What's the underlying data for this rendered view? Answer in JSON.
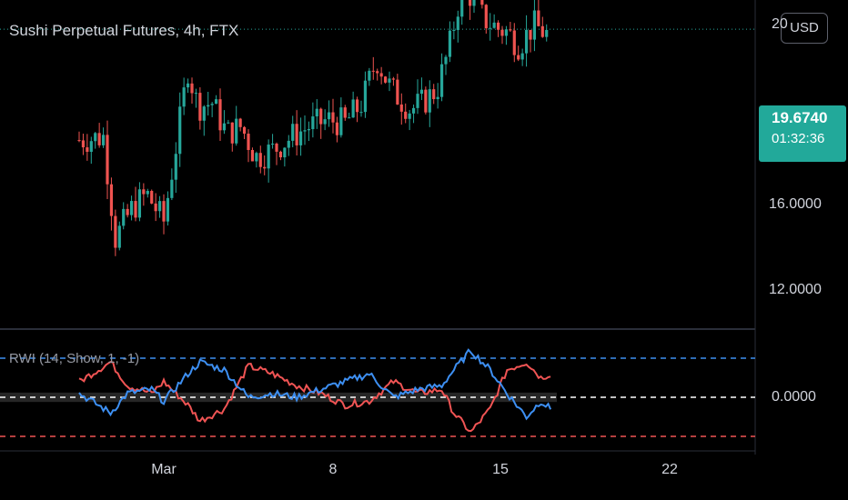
{
  "header": {
    "title": "Sushi Perpetual Futures, 4h, FTX"
  },
  "currency_button": {
    "label": "USD"
  },
  "price_axis": {
    "ticks": [
      {
        "value": 20,
        "label": "20"
      },
      {
        "value": 16,
        "label": "16.0000"
      },
      {
        "value": 12,
        "label": "12.0000"
      }
    ],
    "last_price": "19.6740",
    "countdown": "01:32:36"
  },
  "indicator": {
    "label": "RWI (14, Show, 1, -1)",
    "zero_label": "0.0000"
  },
  "time_axis": {
    "ticks": [
      {
        "day": 1,
        "label": "Mar"
      },
      {
        "day": 8,
        "label": "8"
      },
      {
        "day": 15,
        "label": "15"
      },
      {
        "day": 22,
        "label": "22"
      }
    ]
  },
  "colors": {
    "up": "#26a69a",
    "down": "#ef5350",
    "rwi_high": "#3d8ff2",
    "rwi_low": "#f05454",
    "bg": "#000000"
  },
  "chart_data": [
    {
      "type": "candlestick",
      "x_axis": "date (Feb - Mar)",
      "ylim": [
        10.2,
        21.6
      ],
      "x_range_days": [
        -2.5,
        29
      ],
      "close_path": [
        {
          "day": -2.5,
          "close": 16.4
        },
        {
          "day": -1.5,
          "close": 16.5
        },
        {
          "day": -1.0,
          "close": 13.5
        },
        {
          "day": -0.3,
          "close": 14.4
        },
        {
          "day": 0.3,
          "close": 14.8
        },
        {
          "day": 1.0,
          "close": 14.0
        },
        {
          "day": 1.5,
          "close": 16.2
        },
        {
          "day": 2.0,
          "close": 18.5
        },
        {
          "day": 2.4,
          "close": 17.4
        },
        {
          "day": 3.0,
          "close": 17.5
        },
        {
          "day": 3.6,
          "close": 16.6
        },
        {
          "day": 4.2,
          "close": 16.8
        },
        {
          "day": 4.8,
          "close": 15.9
        },
        {
          "day": 5.5,
          "close": 16.1
        },
        {
          "day": 6.3,
          "close": 16.5
        },
        {
          "day": 7.0,
          "close": 16.8
        },
        {
          "day": 7.8,
          "close": 17.0
        },
        {
          "day": 8.5,
          "close": 16.9
        },
        {
          "day": 9.2,
          "close": 17.5
        },
        {
          "day": 9.8,
          "close": 18.8
        },
        {
          "day": 10.4,
          "close": 17.9
        },
        {
          "day": 11.2,
          "close": 17.3
        },
        {
          "day": 11.7,
          "close": 17.5
        },
        {
          "day": 12.3,
          "close": 17.9
        },
        {
          "day": 12.8,
          "close": 19.1
        },
        {
          "day": 13.2,
          "close": 20.5
        },
        {
          "day": 13.7,
          "close": 20.7
        },
        {
          "day": 14.2,
          "close": 20.0
        },
        {
          "day": 14.8,
          "close": 19.7
        },
        {
          "day": 15.2,
          "close": 19.6
        },
        {
          "day": 15.7,
          "close": 19.2
        },
        {
          "day": 16.3,
          "close": 19.8
        },
        {
          "day": 16.9,
          "close": 19.5
        }
      ],
      "last_price": 19.674
    },
    {
      "type": "line",
      "series": [
        {
          "name": "RWI High",
          "points": [
            {
              "day": -2.5,
              "value": 0.1
            },
            {
              "day": -1.2,
              "value": -0.4
            },
            {
              "day": -0.5,
              "value": 0.1
            },
            {
              "day": 0.5,
              "value": 0.2
            },
            {
              "day": 1.0,
              "value": -0.1
            },
            {
              "day": 2.0,
              "value": 0.6
            },
            {
              "day": 2.5,
              "value": 0.9
            },
            {
              "day": 3.5,
              "value": 0.7
            },
            {
              "day": 4.5,
              "value": 0.0
            },
            {
              "day": 5.5,
              "value": 0.1
            },
            {
              "day": 6.5,
              "value": 0.0
            },
            {
              "day": 7.5,
              "value": 0.2
            },
            {
              "day": 8.5,
              "value": 0.4
            },
            {
              "day": 9.5,
              "value": 0.6
            },
            {
              "day": 10.5,
              "value": 0.0
            },
            {
              "day": 11.5,
              "value": 0.2
            },
            {
              "day": 12.5,
              "value": 0.3
            },
            {
              "day": 13.0,
              "value": 0.7
            },
            {
              "day": 13.7,
              "value": 1.2
            },
            {
              "day": 14.5,
              "value": 0.7
            },
            {
              "day": 15.2,
              "value": 0.1
            },
            {
              "day": 16.0,
              "value": -0.5
            },
            {
              "day": 16.6,
              "value": -0.1
            },
            {
              "day": 17.0,
              "value": -0.3
            }
          ]
        },
        {
          "name": "RWI Low",
          "points": [
            {
              "day": -2.5,
              "value": 0.4
            },
            {
              "day": -1.2,
              "value": 0.9
            },
            {
              "day": -0.5,
              "value": 0.3
            },
            {
              "day": 0.5,
              "value": 0.1
            },
            {
              "day": 1.0,
              "value": 0.4
            },
            {
              "day": 2.0,
              "value": -0.2
            },
            {
              "day": 2.5,
              "value": -0.6
            },
            {
              "day": 3.5,
              "value": -0.3
            },
            {
              "day": 4.5,
              "value": 0.8
            },
            {
              "day": 5.5,
              "value": 0.6
            },
            {
              "day": 6.5,
              "value": 0.3
            },
            {
              "day": 7.5,
              "value": 0.1
            },
            {
              "day": 8.5,
              "value": -0.2
            },
            {
              "day": 9.5,
              "value": -0.1
            },
            {
              "day": 10.5,
              "value": 0.4
            },
            {
              "day": 11.5,
              "value": 0.1
            },
            {
              "day": 12.5,
              "value": 0.2
            },
            {
              "day": 13.0,
              "value": -0.4
            },
            {
              "day": 13.7,
              "value": -0.9
            },
            {
              "day": 14.5,
              "value": -0.3
            },
            {
              "day": 15.2,
              "value": 0.7
            },
            {
              "day": 16.0,
              "value": 0.9
            },
            {
              "day": 16.6,
              "value": 0.5
            },
            {
              "day": 17.0,
              "value": 0.6
            }
          ]
        }
      ],
      "levels": [
        1,
        0,
        -1
      ],
      "ylim": [
        -1.25,
        1.45
      ]
    }
  ]
}
